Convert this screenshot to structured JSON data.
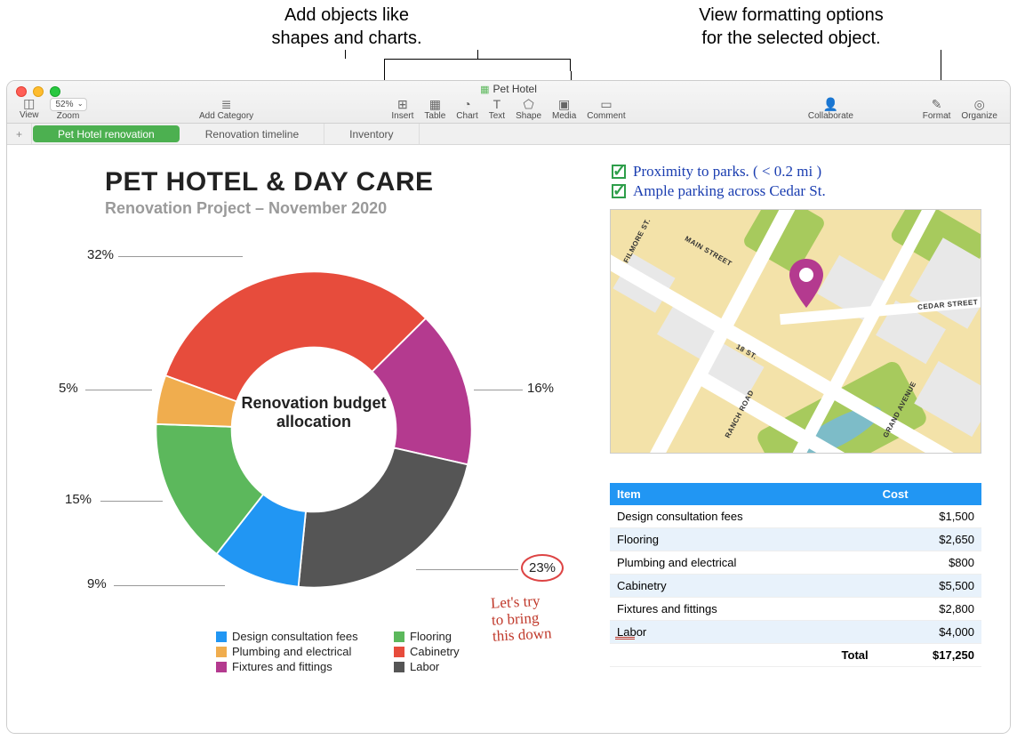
{
  "callouts": {
    "left": "Add objects like\nshapes and charts.",
    "right": "View formatting options\nfor the selected object."
  },
  "window": {
    "doc_title": "Pet Hotel",
    "toolbar": {
      "view": "View",
      "zoom": "Zoom",
      "zoom_value": "52%",
      "add_category": "Add Category",
      "insert": "Insert",
      "table": "Table",
      "chart": "Chart",
      "text": "Text",
      "shape": "Shape",
      "media": "Media",
      "comment": "Comment",
      "collaborate": "Collaborate",
      "format": "Format",
      "organize": "Organize"
    },
    "tabs": {
      "active": "Pet Hotel renovation",
      "t2": "Renovation timeline",
      "t3": "Inventory"
    }
  },
  "heading": {
    "title": "PET HOTEL & DAY CARE",
    "subtitle": "Renovation Project – November 2020"
  },
  "chart": {
    "type": "donut",
    "center_label": "Renovation budget allocation",
    "slices": [
      {
        "label": "Cabinetry",
        "pct": 32,
        "color": "#e74c3c"
      },
      {
        "label": "Fixtures and fittings",
        "pct": 16,
        "color": "#b43a8f"
      },
      {
        "label": "Labor",
        "pct": 23,
        "color": "#555555"
      },
      {
        "label": "Design consultation fees",
        "pct": 9,
        "color": "#2196f3"
      },
      {
        "label": "Flooring",
        "pct": 15,
        "color": "#5cb85c"
      },
      {
        "label": "Plumbing and electrical",
        "pct": 5,
        "color": "#f0ad4e"
      }
    ],
    "inner_ratio": 0.52,
    "start_angle": -160,
    "labels": {
      "p32": "32%",
      "p16": "16%",
      "p23": "23%",
      "p9": "9%",
      "p15": "15%",
      "p5": "5%"
    },
    "legend_order": [
      [
        "Design consultation fees",
        "#2196f3"
      ],
      [
        "Flooring",
        "#5cb85c"
      ],
      [
        "Plumbing and electrical",
        "#f0ad4e"
      ],
      [
        "Cabinetry",
        "#e74c3c"
      ],
      [
        "Fixtures and fittings",
        "#b43a8f"
      ],
      [
        "Labor",
        "#555555"
      ]
    ],
    "handnote": "Let's try\nto bring\nthis down"
  },
  "checklist": {
    "i1": "Proximity to parks. ( < 0.2 mi )",
    "i2": "Ample parking across  Cedar St."
  },
  "map": {
    "streets": {
      "main": "MAIN STREET",
      "filmore": "FILMORE ST.",
      "cedar": "CEDAR STREET",
      "ranch": "RANCH ROAD",
      "grand": "GRAND AVENUE",
      "eighteen": "18 ST."
    },
    "pin_color": "#b43a8f"
  },
  "table": {
    "columns": [
      "Item",
      "Cost"
    ],
    "rows": [
      [
        "Design consultation fees",
        "$1,500"
      ],
      [
        "Flooring",
        "$2,650"
      ],
      [
        "Plumbing and electrical",
        "$800"
      ],
      [
        "Cabinetry",
        "$5,500"
      ],
      [
        "Fixtures and fittings",
        "$2,800"
      ],
      [
        "Labor",
        "$4,000"
      ]
    ],
    "total_label": "Total",
    "total_value": "$17,250",
    "header_bg": "#2196f3",
    "alt_bg": "#e8f2fb"
  }
}
